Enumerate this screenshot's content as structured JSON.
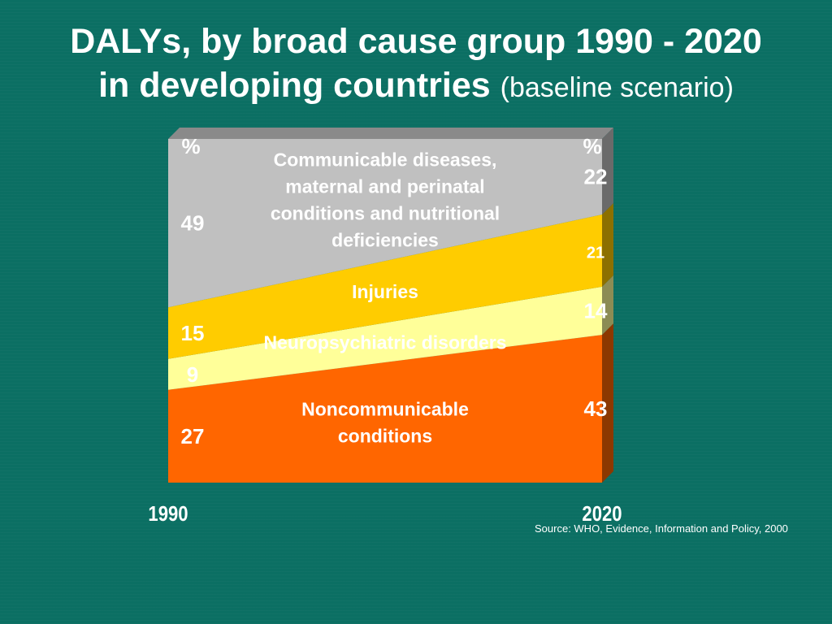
{
  "slide": {
    "title_line1": "DALYs, by broad cause group 1990 - 2020",
    "title_line2": "in developing countries",
    "title_suffix": "(baseline scenario)",
    "source": "Source: WHO, Evidence, Information and Policy, 2000"
  },
  "chart_data": {
    "type": "area",
    "title": "DALYs, by broad cause group 1990 - 2020 in developing countries (baseline scenario)",
    "x": [
      "1990",
      "2020"
    ],
    "unit": "%",
    "ylim": [
      0,
      100
    ],
    "stacking": "bottom-to-top",
    "series": [
      {
        "name": "Noncommunicable conditions",
        "values": [
          27,
          43
        ],
        "color": "#ff6600",
        "text_color": "#ffffff"
      },
      {
        "name": "Neuropsychiatric disorders",
        "values": [
          9,
          14
        ],
        "color": "#ffff99",
        "text_color": "#ffffff"
      },
      {
        "name": "Injuries",
        "values": [
          15,
          21
        ],
        "color": "#ffcc00",
        "text_color": "#ffffff"
      },
      {
        "name": "Communicable diseases, maternal and perinatal conditions and nutritional deficiencies",
        "values": [
          49,
          22
        ],
        "color": "#c0c0c0",
        "text_color": "#ffffff"
      }
    ],
    "series_label_lines": [
      [
        "Noncommunicable",
        "conditions"
      ],
      [
        "Neuropsychiatric disorders"
      ],
      [
        "Injuries"
      ],
      [
        "Communicable diseases,",
        "maternal and perinatal",
        "conditions and nutritional",
        "deficiencies"
      ]
    ],
    "value_labels_start": [
      "27",
      "9",
      "15",
      "49"
    ],
    "value_labels_end": [
      "43",
      "14",
      "21",
      "22"
    ],
    "unit_labels": [
      "%",
      "%"
    ],
    "grid": false,
    "legend": "none",
    "style": "3d"
  }
}
